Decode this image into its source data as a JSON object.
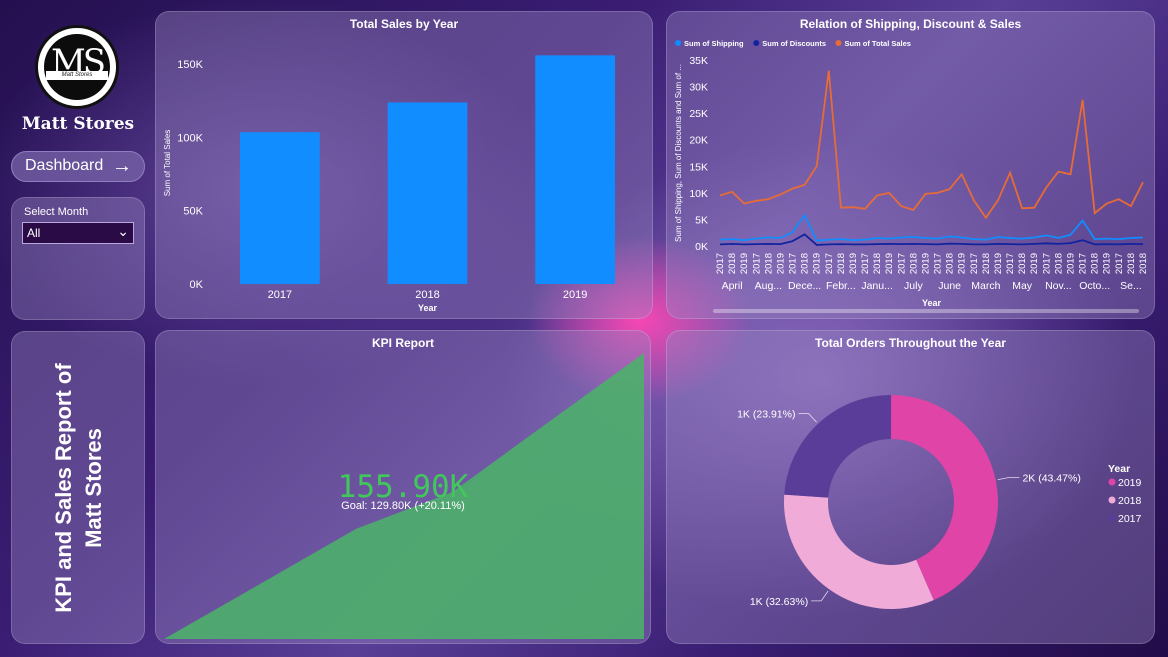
{
  "sidebar": {
    "logo_monogram": "MS",
    "logo_band_text": "Matt Stores",
    "brand_name": "Matt Stores",
    "dashboard_button": "Dashboard",
    "slicer": {
      "label": "Select Month",
      "value": "All"
    }
  },
  "report_title": "KPI and Sales Report of Matt Stores",
  "charts": {
    "sales_by_year": {
      "title": "Total Sales by Year",
      "xlabel": "Year",
      "ylabel": "Sum of Total Sales",
      "yticks": [
        "0K",
        "50K",
        "100K",
        "150K"
      ],
      "bar_color": "#118dff"
    },
    "shipping_discount_sales": {
      "title": "Relation of Shipping, Discount & Sales",
      "xlabel": "Year",
      "ylabel": "Sum of Shipping, Sum of Discounts and Sum of ...",
      "yticks": [
        "0K",
        "5K",
        "10K",
        "15K",
        "20K",
        "25K",
        "30K",
        "35K"
      ],
      "month_labels": [
        "April",
        "Aug...",
        "Dece...",
        "Febr...",
        "Janu...",
        "July",
        "June",
        "March",
        "May",
        "Nov...",
        "Octo...",
        "Se..."
      ]
    },
    "kpi": {
      "title": "KPI Report",
      "value": "155.90K",
      "goal_text": "Goal: 129.80K (+20.11%)",
      "color": "#4caf6a"
    },
    "orders": {
      "title": "Total Orders Throughout the Year",
      "legend_title": "Year"
    }
  },
  "chart_data": [
    {
      "type": "bar",
      "title": "Total Sales by Year",
      "categories": [
        "2017",
        "2018",
        "2019"
      ],
      "values": [
        103500,
        123800,
        155900
      ],
      "xlabel": "Year",
      "ylabel": "Sum of Total Sales",
      "ylim": [
        0,
        165000
      ]
    },
    {
      "type": "line",
      "title": "Relation of Shipping, Discount & Sales",
      "xlabel": "Year",
      "ylabel": "Sum of Shipping, Sum of Discounts and Sum of ...",
      "ylim": [
        0,
        35000
      ],
      "x": [
        "2017",
        "2018",
        "2019",
        "2017",
        "2018",
        "2019",
        "2017",
        "2018",
        "2019",
        "2017",
        "2018",
        "2019",
        "2017",
        "2018",
        "2019",
        "2017",
        "2018",
        "2019",
        "2017",
        "2018",
        "2019",
        "2017",
        "2018",
        "2019",
        "2017",
        "2018",
        "2019",
        "2017",
        "2018",
        "2019",
        "2017",
        "2018",
        "2019",
        "2017",
        "2018",
        "2018"
      ],
      "legend_position": "top-left",
      "series": [
        {
          "name": "Sum of Shipping",
          "color": "#118dff",
          "values": [
            1200,
            1300,
            1100,
            1400,
            1600,
            1500,
            2600,
            5800,
            1000,
            1200,
            1300,
            1100,
            1200,
            1500,
            1400,
            1600,
            1700,
            1500,
            1400,
            1800,
            1600,
            1300,
            1200,
            1700,
            1500,
            1400,
            1600,
            2000,
            1500,
            2100,
            4800,
            1300,
            1400,
            1300,
            1500,
            1600
          ]
        },
        {
          "name": "Sum of Discounts",
          "color": "#12239e",
          "values": [
            300,
            400,
            300,
            350,
            400,
            350,
            900,
            2200,
            200,
            300,
            350,
            300,
            300,
            350,
            400,
            350,
            400,
            350,
            300,
            450,
            400,
            300,
            300,
            400,
            350,
            300,
            400,
            500,
            400,
            550,
            1100,
            300,
            350,
            300,
            400,
            350
          ]
        },
        {
          "name": "Sum of Total Sales",
          "color": "#e66c37",
          "values": [
            9500,
            10200,
            8000,
            8500,
            8800,
            9700,
            10800,
            11500,
            15000,
            33000,
            7200,
            7300,
            7000,
            9500,
            10000,
            7500,
            6800,
            9800,
            10000,
            10700,
            13500,
            8600,
            5300,
            8600,
            13800,
            7100,
            7200,
            11000,
            14000,
            13500,
            27500,
            6200,
            8000,
            8800,
            7500,
            12000
          ]
        }
      ]
    },
    {
      "type": "area",
      "title": "KPI Report",
      "values": [
        0,
        30000,
        60000,
        80000,
        118000,
        155900
      ],
      "ylim": [
        0,
        155900
      ]
    },
    {
      "type": "pie",
      "title": "Total Orders Throughout the Year",
      "legend_title": "Year",
      "legend_position": "right",
      "slices": [
        {
          "name": "2019",
          "label": "2K (43.47%)",
          "percent": 43.47,
          "color": "#e044a7"
        },
        {
          "name": "2018",
          "label": "1K (32.63%)",
          "percent": 32.63,
          "color": "#f0abd8"
        },
        {
          "name": "2017",
          "label": "1K (23.91%)",
          "percent": 23.91,
          "color": "#5a3c99"
        }
      ]
    }
  ]
}
